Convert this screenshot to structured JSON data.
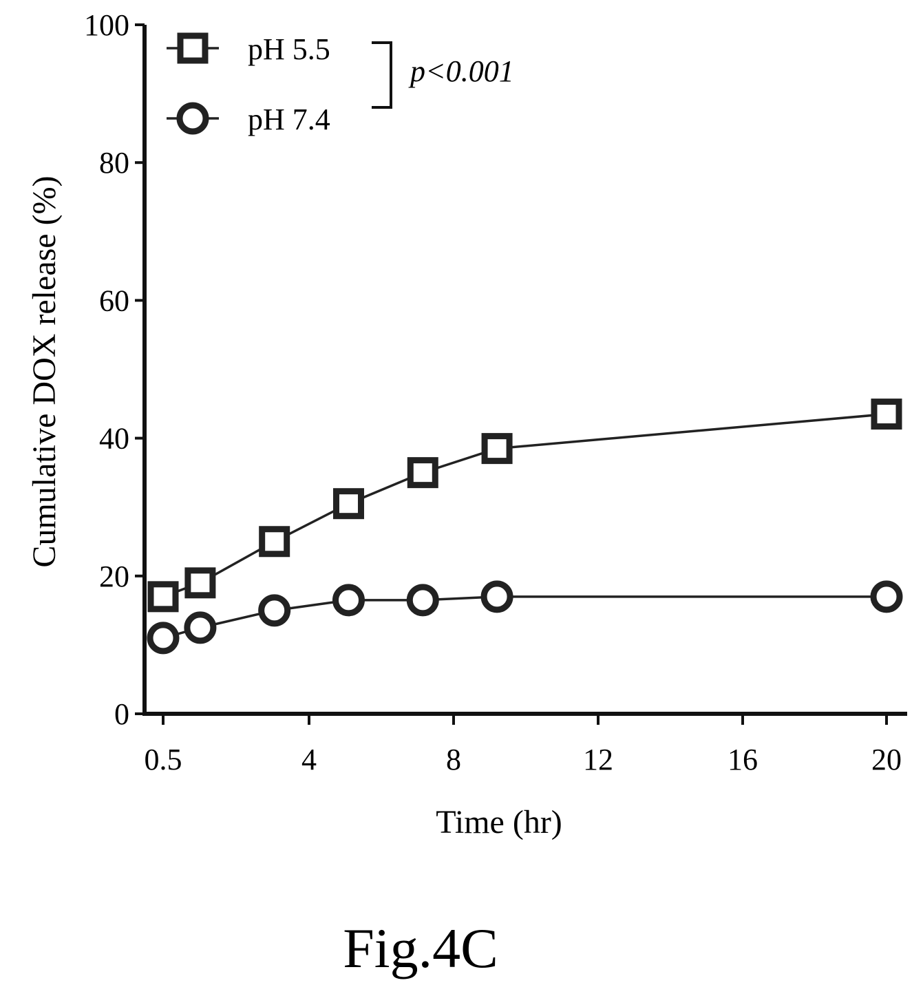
{
  "chart_data": {
    "type": "line",
    "xlabel": "Time (hr)",
    "ylabel": "Cumulative DOX release (%)",
    "x_tick_labels": [
      "0.5",
      "4",
      "8",
      "12",
      "16",
      "20"
    ],
    "y_tick_labels": [
      "0",
      "20",
      "40",
      "60",
      "80",
      "100"
    ],
    "ylim": [
      0,
      100
    ],
    "legend_position": "top-left",
    "series": [
      {
        "name": "pH 5.5",
        "marker": "square",
        "x": [
          0.5,
          1.5,
          3.5,
          5.5,
          7.5,
          9.5,
          20
        ],
        "y": [
          17,
          19,
          25,
          30.5,
          35,
          38.5,
          43.5
        ]
      },
      {
        "name": "pH 7.4",
        "marker": "circle",
        "x": [
          0.5,
          1.5,
          3.5,
          5.5,
          7.5,
          9.5,
          20
        ],
        "y": [
          11,
          12.5,
          15,
          16.5,
          16.5,
          17,
          17
        ]
      }
    ],
    "annotation": "p<0.001"
  },
  "caption": "Fig.4C",
  "colors": {
    "ink": "#222222",
    "background": "#ffffff"
  }
}
